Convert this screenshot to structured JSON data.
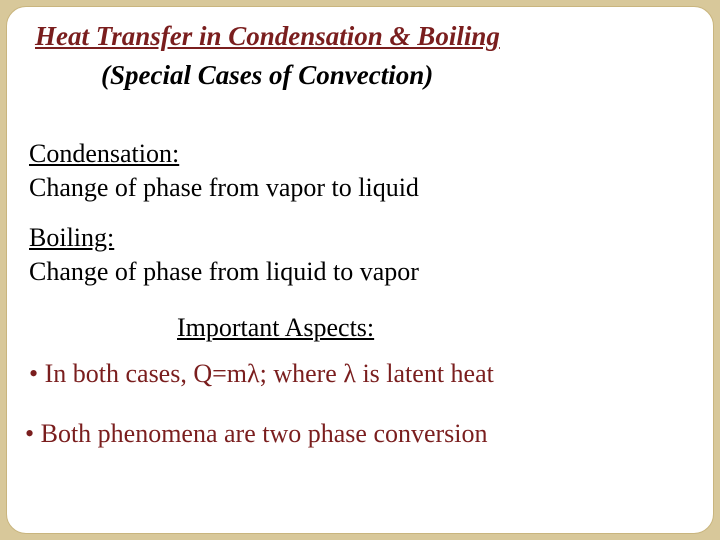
{
  "colors": {
    "background": "#d8c89a",
    "panel_bg": "#ffffff",
    "panel_border": "#c9b57e",
    "title_color": "#7a1e1e",
    "body_color": "#000000",
    "bullet_color": "#7a1e1e"
  },
  "typography": {
    "family": "Times New Roman",
    "title_fontsize": 27,
    "body_fontsize": 26
  },
  "title": "Heat Transfer in Condensation & Boiling",
  "subtitle": "(Special Cases of Convection)",
  "sections": [
    {
      "heading": "Condensation:",
      "text": "Change of phase from vapor to liquid"
    },
    {
      "heading": "Boiling:",
      "text": "Change of phase from liquid to vapor"
    }
  ],
  "aspects_heading": "Important Aspects:",
  "bullets": [
    "• In both cases, Q=mλ; where λ is latent heat",
    "• Both phenomena are two phase conversion"
  ]
}
